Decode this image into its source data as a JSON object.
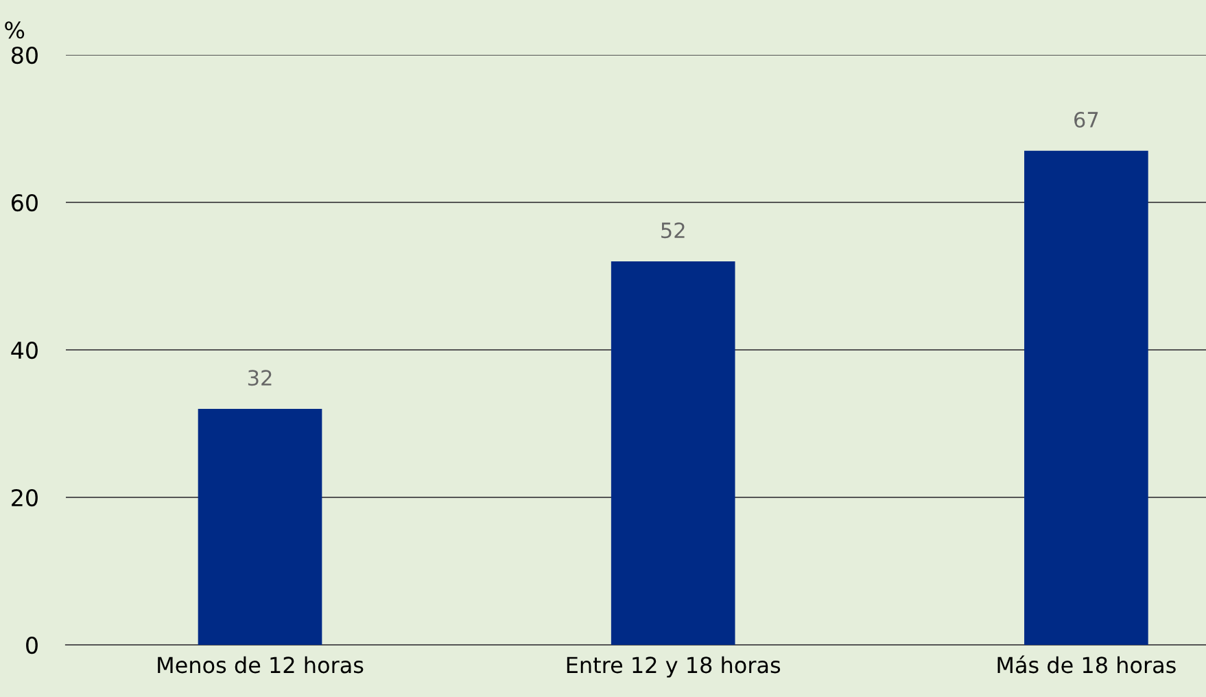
{
  "chart_data": {
    "type": "bar",
    "ylabel": "%",
    "categories": [
      "Menos de 12 horas",
      "Entre 12 y 18 horas",
      "Más de 18 horas"
    ],
    "values": [
      32,
      52,
      67
    ],
    "color": "#002a86",
    "ylim": [
      0,
      80
    ],
    "yticks": [
      0,
      20,
      40,
      60,
      80
    ],
    "grid": "y",
    "data_labels": true
  }
}
